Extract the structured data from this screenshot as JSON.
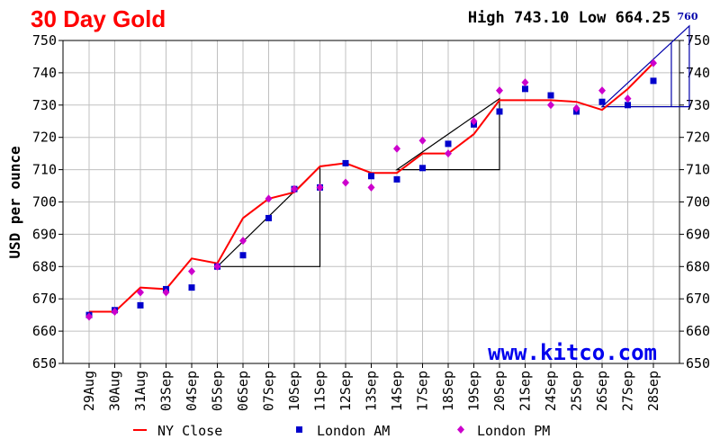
{
  "colors": {
    "title": "#ff0000",
    "ny_close": "#ff0000",
    "london_am": "#0000cc",
    "london_pm": "#cc00cc",
    "watermark": "#0000ee",
    "annotation": "#0000aa",
    "grid": "#c0c0c0"
  },
  "header": {
    "title": "30 Day Gold",
    "high_low": "High 743.10 Low 664.25"
  },
  "watermark": "www.kitco.com",
  "annotation": {
    "label": "760"
  },
  "chart_data": {
    "type": "line",
    "title": "30 Day Gold",
    "ylabel": "USD per ounce",
    "xlabel": "",
    "ylim": [
      650,
      750
    ],
    "yticks": [
      650,
      660,
      670,
      680,
      690,
      700,
      710,
      720,
      730,
      740,
      750
    ],
    "grid": true,
    "legend_position": "bottom",
    "categories": [
      "29Aug",
      "30Aug",
      "31Aug",
      "03Sep",
      "04Sep",
      "05Sep",
      "06Sep",
      "07Sep",
      "10Sep",
      "11Sep",
      "12Sep",
      "13Sep",
      "14Sep",
      "17Sep",
      "18Sep",
      "19Sep",
      "20Sep",
      "21Sep",
      "24Sep",
      "25Sep",
      "26Sep",
      "27Sep",
      "28Sep"
    ],
    "series": [
      {
        "name": "NY Close",
        "type": "line",
        "values": [
          666,
          666,
          673.5,
          673,
          682.5,
          681,
          695,
          701,
          703,
          711,
          712,
          709,
          709,
          715,
          715,
          721,
          731.5,
          731.5,
          731.5,
          731,
          728.5,
          735,
          743
        ]
      },
      {
        "name": "London AM",
        "type": "scatter",
        "marker": "square",
        "values": [
          665,
          666.5,
          668,
          673,
          673.5,
          680,
          683.5,
          695,
          704,
          704.5,
          712,
          708,
          707,
          710.5,
          718,
          724,
          728,
          735,
          733,
          728,
          731,
          730,
          737.5
        ]
      },
      {
        "name": "London PM",
        "type": "scatter",
        "marker": "diamond",
        "values": [
          664.5,
          666,
          672,
          672,
          678.5,
          680,
          688,
          701,
          704,
          704.5,
          706,
          704.5,
          716.5,
          719,
          715,
          725,
          734.5,
          737,
          730,
          729,
          734.5,
          732,
          743
        ]
      }
    ]
  }
}
